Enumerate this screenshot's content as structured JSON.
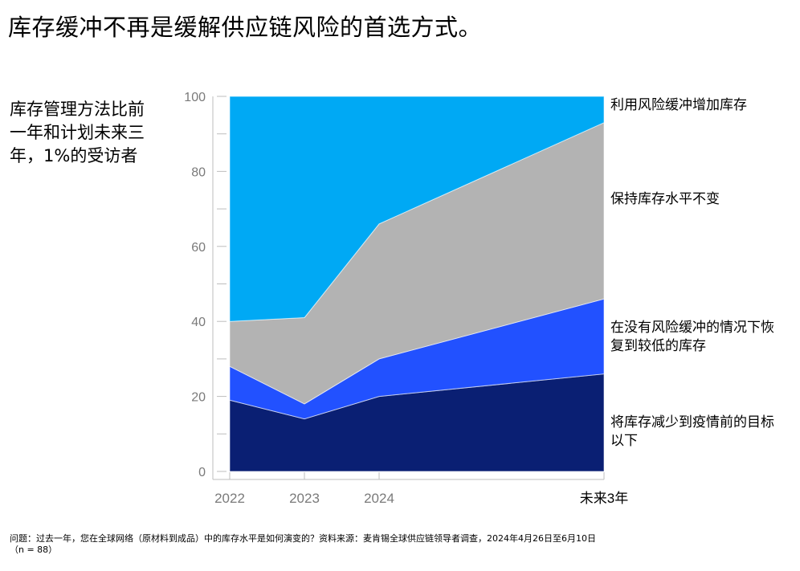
{
  "title": "库存缓冲不再是缓解供应链风险的首选方式。",
  "subtitle": "库存管理方法比前一年和计划未来三年，1%的受访者",
  "footnote": {
    "line1": "问题：过去一年，您在全球网络（原材料到成品）中的库存水平是如何演变的？资料来源：麦肯锡全球供应链领导者调查，2024年4月26日至6月10日",
    "line2": "（n = 88）"
  },
  "colors": {
    "increase_buffer": "#00a9f4",
    "keep_constant": "#b3b3b3",
    "recover_lower": "#2251ff",
    "reduce_prepandemic": "#0a1f73",
    "grid": "#e3e3e3"
  },
  "chart_data": {
    "type": "area",
    "stacked": true,
    "x": [
      "2022",
      "2023",
      "2024",
      "未来3年"
    ],
    "ylim": [
      0,
      100
    ],
    "yticks": [
      0,
      20,
      40,
      60,
      80,
      100
    ],
    "grid": false,
    "legend": "right, inline labels",
    "series": [
      {
        "name": "将库存减少到疫情前的目标以下",
        "values": [
          19,
          14,
          20,
          26
        ]
      },
      {
        "name": "在没有风险缓冲的情况下恢复到较低的库存",
        "values": [
          9,
          4,
          10,
          20
        ]
      },
      {
        "name": "保持库存水平不变",
        "values": [
          12,
          23,
          36,
          47
        ]
      },
      {
        "name": "利用风险缓冲增加库存",
        "values": [
          60,
          59,
          34,
          7
        ]
      }
    ]
  }
}
